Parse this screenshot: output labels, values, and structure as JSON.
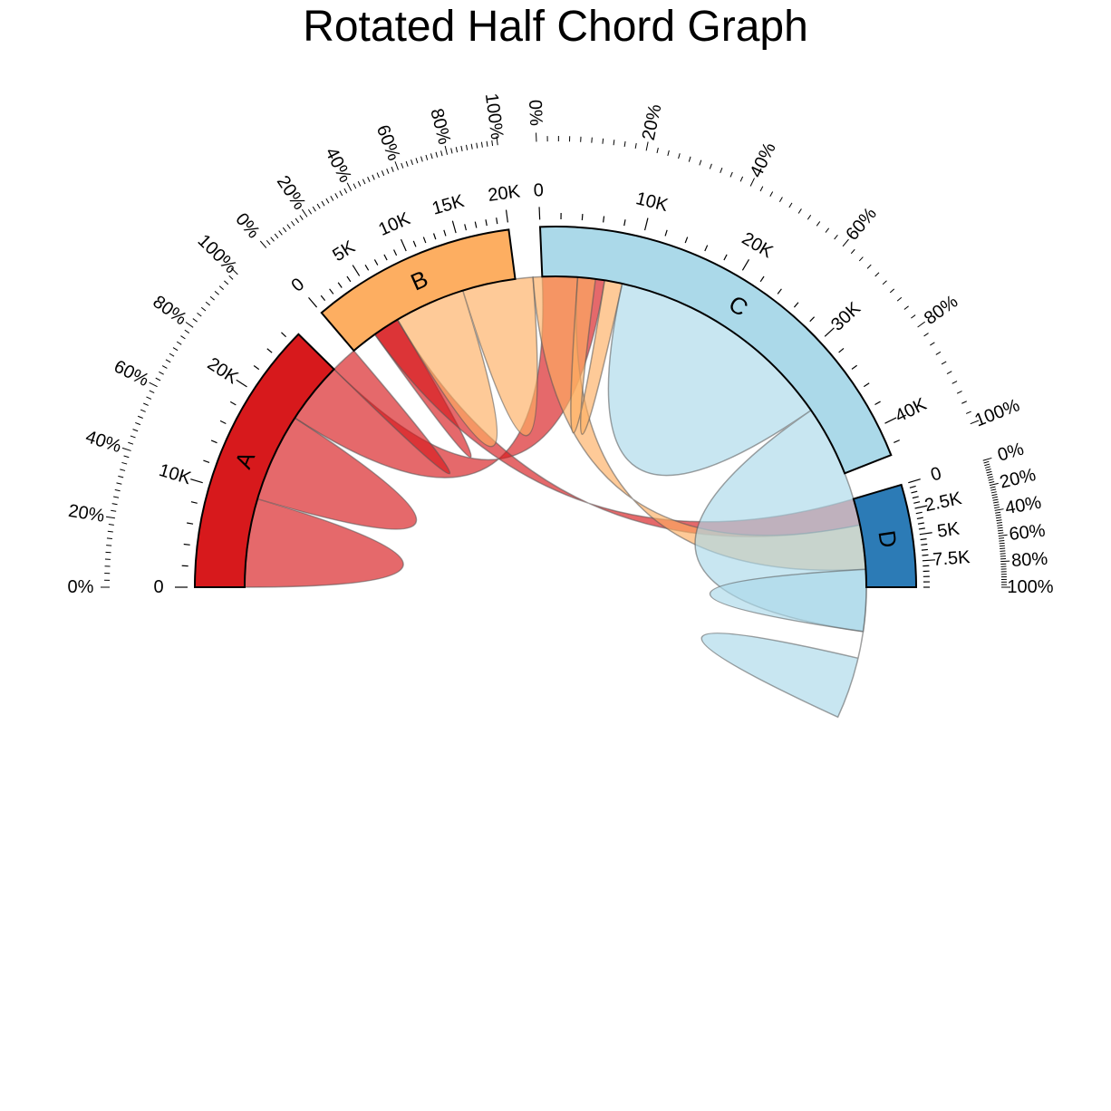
{
  "chart_data": {
    "type": "chord",
    "title": "Rotated Half Chord Graph",
    "sectors": [
      {
        "name": "A",
        "total": 27000,
        "color": "#d7191c",
        "value_ticks": [
          "0",
          "10K",
          "20K"
        ],
        "value_tick_values": [
          0,
          10000,
          20000
        ]
      },
      {
        "name": "B",
        "total": 20000,
        "color": "#fdae61",
        "value_ticks": [
          "0",
          "5K",
          "10K",
          "15K",
          "20K"
        ],
        "value_tick_values": [
          0,
          5000,
          10000,
          15000,
          20000
        ]
      },
      {
        "name": "C",
        "total": 43000,
        "color": "#abd9e9",
        "value_ticks": [
          "0",
          "10K",
          "20K",
          "30K",
          "40K"
        ],
        "value_tick_values": [
          0,
          10000,
          20000,
          30000,
          40000
        ]
      },
      {
        "name": "D",
        "total": 10000,
        "color": "#2c7bb6",
        "value_ticks": [
          "0",
          "2.5K",
          "5K",
          "7.5K"
        ],
        "value_tick_values": [
          0,
          2500,
          5000,
          7500
        ]
      }
    ],
    "percent_ticks": [
      "0%",
      "20%",
      "40%",
      "60%",
      "80%",
      "100%"
    ],
    "links": [
      {
        "source": "A",
        "target": "A",
        "value": 10000
      },
      {
        "source": "A",
        "target": "C",
        "value": 7000
      },
      {
        "source": "A",
        "target": "B",
        "value": 6000
      },
      {
        "source": "A",
        "target": "D",
        "value": 3000
      },
      {
        "source": "B",
        "target": "B",
        "value": 8000
      },
      {
        "source": "B",
        "target": "D",
        "value": 5000
      },
      {
        "source": "B",
        "target": "C",
        "value": 2000
      },
      {
        "source": "C",
        "target": "C",
        "value": 26000
      },
      {
        "source": "C",
        "target": "D",
        "value": 10000
      }
    ]
  }
}
